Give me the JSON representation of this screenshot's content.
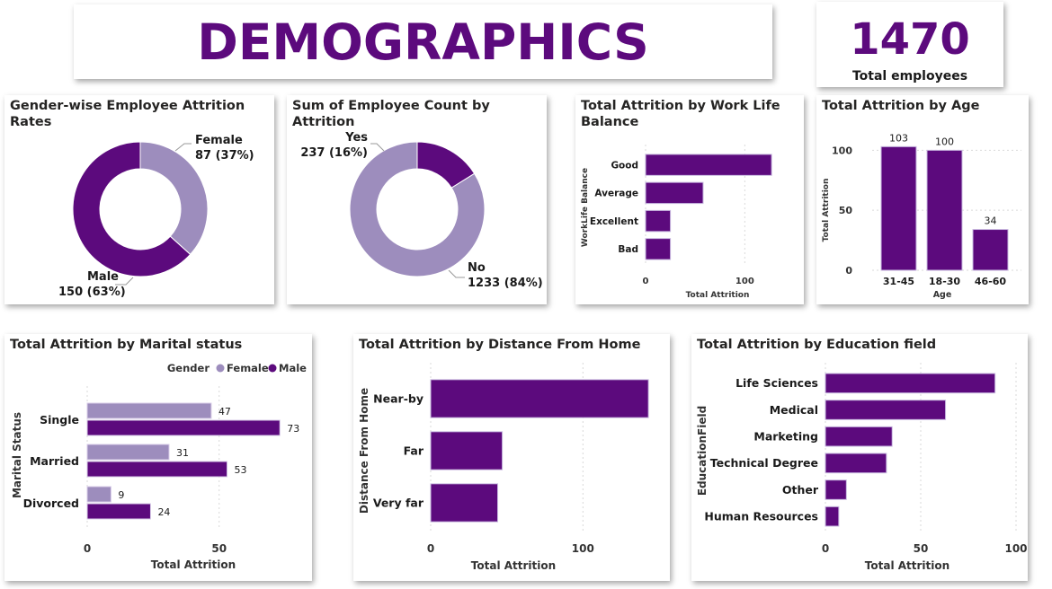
{
  "header": {
    "title": "DEMOGRAPHICS"
  },
  "kpi": {
    "value": "1470",
    "label": "Total employees"
  },
  "colors": {
    "male": "#5c0a7d",
    "female": "#9d8dbd",
    "accent": "#5c0a7d"
  },
  "charts": {
    "gender": {
      "title": "Gender-wise Employee Attrition Rates"
    },
    "attrition": {
      "title": "Sum of Employee Count by Attrition"
    },
    "worklife": {
      "title": "Total Attrition by Work Life Balance"
    },
    "age": {
      "title": "Total Attrition by Age"
    },
    "marital": {
      "title": "Total Attrition by Marital status"
    },
    "distance": {
      "title": "Total Attrition by Distance From Home"
    },
    "education": {
      "title": "Total Attrition by Education field"
    }
  },
  "chart_data": [
    {
      "id": "gender",
      "type": "pie",
      "title": "Gender-wise Employee Attrition Rates",
      "slices": [
        {
          "label": "Female",
          "value": 87,
          "pct": "37%",
          "color": "#9d8dbd"
        },
        {
          "label": "Male",
          "value": 150,
          "pct": "63%",
          "color": "#5c0a7d"
        }
      ]
    },
    {
      "id": "attrition",
      "type": "pie",
      "title": "Sum of Employee Count by Attrition",
      "slices": [
        {
          "label": "Yes",
          "value": 237,
          "pct": "16%",
          "color": "#5c0a7d"
        },
        {
          "label": "No",
          "value": 1233,
          "pct": "84%",
          "color": "#9d8dbd"
        }
      ]
    },
    {
      "id": "worklife",
      "type": "bar",
      "orientation": "horizontal",
      "title": "Total Attrition by Work Life Balance",
      "categories": [
        "Good",
        "Average",
        "Excellent",
        "Bad"
      ],
      "values": [
        127,
        58,
        25,
        25
      ],
      "xlabel": "Total Attrition",
      "ylabel": "WorkLife Balance",
      "xlim": [
        0,
        145
      ],
      "xticks": [
        0,
        100
      ]
    },
    {
      "id": "age",
      "type": "bar",
      "orientation": "vertical",
      "title": "Total Attrition by Age",
      "categories": [
        "31-45",
        "18-30",
        "46-60"
      ],
      "values": [
        103,
        100,
        34
      ],
      "xlabel": "Age",
      "ylabel": "Total Attrition",
      "ylim": [
        0,
        110
      ],
      "yticks": [
        0,
        50,
        100
      ]
    },
    {
      "id": "marital",
      "type": "bar",
      "orientation": "horizontal",
      "title": "Total Attrition by Marital status",
      "categories": [
        "Single",
        "Married",
        "Divorced"
      ],
      "legend_title": "Gender",
      "series": [
        {
          "name": "Female",
          "values": [
            47,
            31,
            9
          ],
          "color": "#9d8dbd"
        },
        {
          "name": "Male",
          "values": [
            73,
            53,
            24
          ],
          "color": "#5c0a7d"
        }
      ],
      "xlabel": "Total Attrition",
      "ylabel": "Marital Status",
      "xlim": [
        0,
        77
      ],
      "xticks": [
        0,
        50
      ]
    },
    {
      "id": "distance",
      "type": "bar",
      "orientation": "horizontal",
      "title": "Total Attrition by Distance From Home",
      "categories": [
        "Near-by",
        "Far",
        "Very far"
      ],
      "values": [
        143,
        47,
        44
      ],
      "xlabel": "Total Attrition",
      "ylabel": "Distance From Home",
      "xlim": [
        0,
        150
      ],
      "xticks": [
        0,
        100
      ]
    },
    {
      "id": "education",
      "type": "bar",
      "orientation": "horizontal",
      "title": "Total Attrition by Education field",
      "categories": [
        "Life Sciences",
        "Medical",
        "Marketing",
        "Technical Degree",
        "Other",
        "Human Resources"
      ],
      "values": [
        89,
        63,
        35,
        32,
        11,
        7
      ],
      "xlabel": "Total Attrition",
      "ylabel": "EducationField",
      "xlim": [
        0,
        100
      ],
      "xticks": [
        0,
        50,
        100
      ]
    }
  ]
}
